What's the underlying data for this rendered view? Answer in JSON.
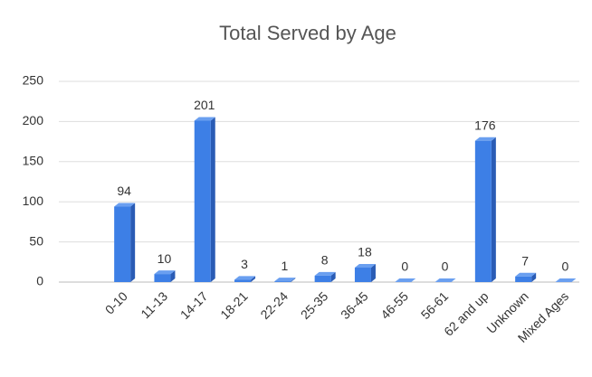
{
  "chart_data": {
    "type": "bar3d",
    "title": "Total Served by Age",
    "categories": [
      "0-10",
      "11-13",
      "14-17",
      "18-21",
      "22-24",
      "25-35",
      "36-45",
      "46-55",
      "56-61",
      "62 and up",
      "Unknown",
      "Mixed Ages"
    ],
    "values": [
      94,
      10,
      201,
      3,
      1,
      8,
      18,
      0,
      0,
      176,
      7,
      0
    ],
    "color": "#3d7fe6",
    "ylim": [
      0,
      250
    ],
    "yticks": [
      0,
      50,
      100,
      150,
      200,
      250
    ],
    "grid": true
  }
}
